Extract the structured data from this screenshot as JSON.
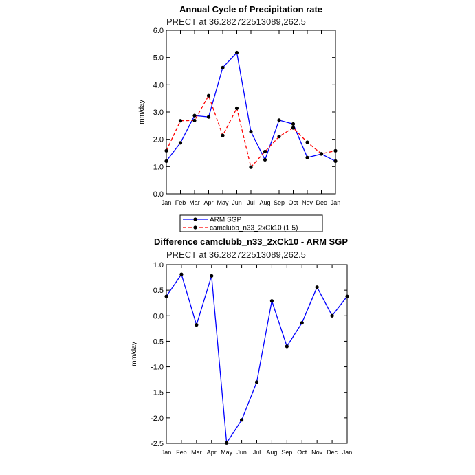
{
  "chart_data": [
    {
      "type": "line",
      "title": "Annual Cycle of Precipitation rate",
      "subtitle": "PRECT at 36.282722513089,262.5",
      "ylabel": "mm/day",
      "xlabel": "",
      "ylim": [
        0,
        6
      ],
      "yticks": [
        "0.0",
        "1.0",
        "2.0",
        "3.0",
        "4.0",
        "5.0",
        "6.0"
      ],
      "categories": [
        "Jan",
        "Feb",
        "Mar",
        "Apr",
        "May",
        "Jun",
        "Jul",
        "Aug",
        "Sep",
        "Oct",
        "Nov",
        "Dec",
        "Jan"
      ],
      "legend_position": "bottom",
      "series": [
        {
          "name": "ARM SGP",
          "color": "#0000ff",
          "dash": "solid",
          "values": [
            1.2,
            1.87,
            2.87,
            2.82,
            4.63,
            5.18,
            2.28,
            1.25,
            2.7,
            2.56,
            1.33,
            1.46,
            1.2
          ]
        },
        {
          "name": "camclubb_n33_2xCk10 (1-5)",
          "color": "#ff0000",
          "dash": "dashed",
          "values": [
            1.58,
            2.68,
            2.69,
            3.6,
            2.14,
            3.14,
            0.98,
            1.55,
            2.1,
            2.42,
            1.89,
            1.47,
            1.58
          ]
        }
      ]
    },
    {
      "type": "line",
      "title": "Difference camclubb_n33_2xCk10 - ARM SGP",
      "subtitle": "PRECT at 36.282722513089,262.5",
      "ylabel": "mm/day",
      "xlabel": "",
      "ylim": [
        -2.5,
        1.0
      ],
      "yticks": [
        "-2.5",
        "-2.0",
        "-1.5",
        "-1.0",
        "-0.5",
        "0.0",
        "0.5",
        "1.0"
      ],
      "categories": [
        "Jan",
        "Feb",
        "Mar",
        "Apr",
        "May",
        "Jun",
        "Jul",
        "Aug",
        "Sep",
        "Oct",
        "Nov",
        "Dec",
        "Jan"
      ],
      "series": [
        {
          "color": "#0000ff",
          "dash": "solid",
          "values": [
            0.38,
            0.81,
            -0.18,
            0.78,
            -2.49,
            -2.04,
            -1.3,
            0.29,
            -0.6,
            -0.14,
            0.56,
            0.0,
            0.38
          ]
        }
      ]
    }
  ]
}
